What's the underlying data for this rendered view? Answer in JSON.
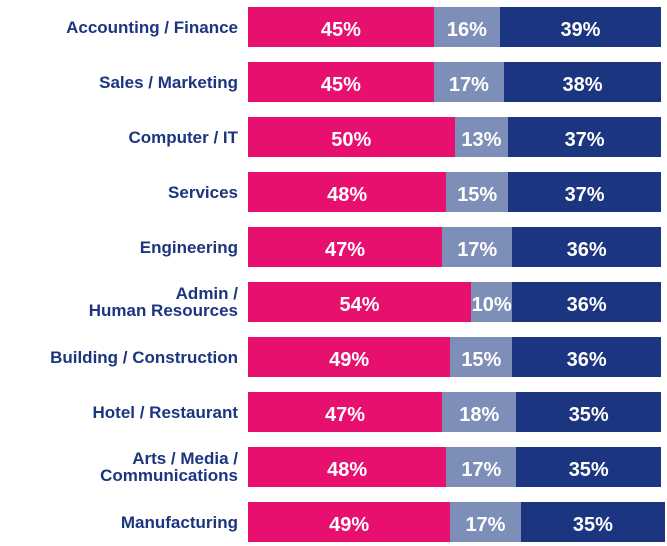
{
  "chart_data": {
    "type": "stacked-bar-horizontal",
    "categories": [
      "Accounting / Finance",
      "Sales / Marketing",
      "Computer / IT",
      "Services",
      "Engineering",
      "Admin /\nHuman Resources",
      "Building / Construction",
      "Hotel / Restaurant",
      "Arts / Media /\nCommunications",
      "Manufacturing"
    ],
    "series": [
      {
        "color": "#e8106f",
        "values": [
          45,
          45,
          50,
          48,
          47,
          54,
          49,
          47,
          48,
          49
        ],
        "value_labels": [
          "45%",
          "45%",
          "50%",
          "48%",
          "47%",
          "54%",
          "49%",
          "47%",
          "48%",
          "49%"
        ]
      },
      {
        "color": "#7d8fb8",
        "values": [
          16,
          17,
          13,
          15,
          17,
          10,
          15,
          18,
          17,
          17
        ],
        "value_labels": [
          "16%",
          "17%",
          "13%",
          "15%",
          "17%",
          "10%",
          "15%",
          "18%",
          "17%",
          "17%"
        ]
      },
      {
        "color": "#1c3580",
        "values": [
          39,
          38,
          37,
          37,
          36,
          36,
          36,
          35,
          35,
          35
        ],
        "value_labels": [
          "39%",
          "38%",
          "37%",
          "37%",
          "36%",
          "36%",
          "36%",
          "35%",
          "35%",
          "35%"
        ]
      }
    ],
    "xlim": [
      0,
      100
    ]
  }
}
